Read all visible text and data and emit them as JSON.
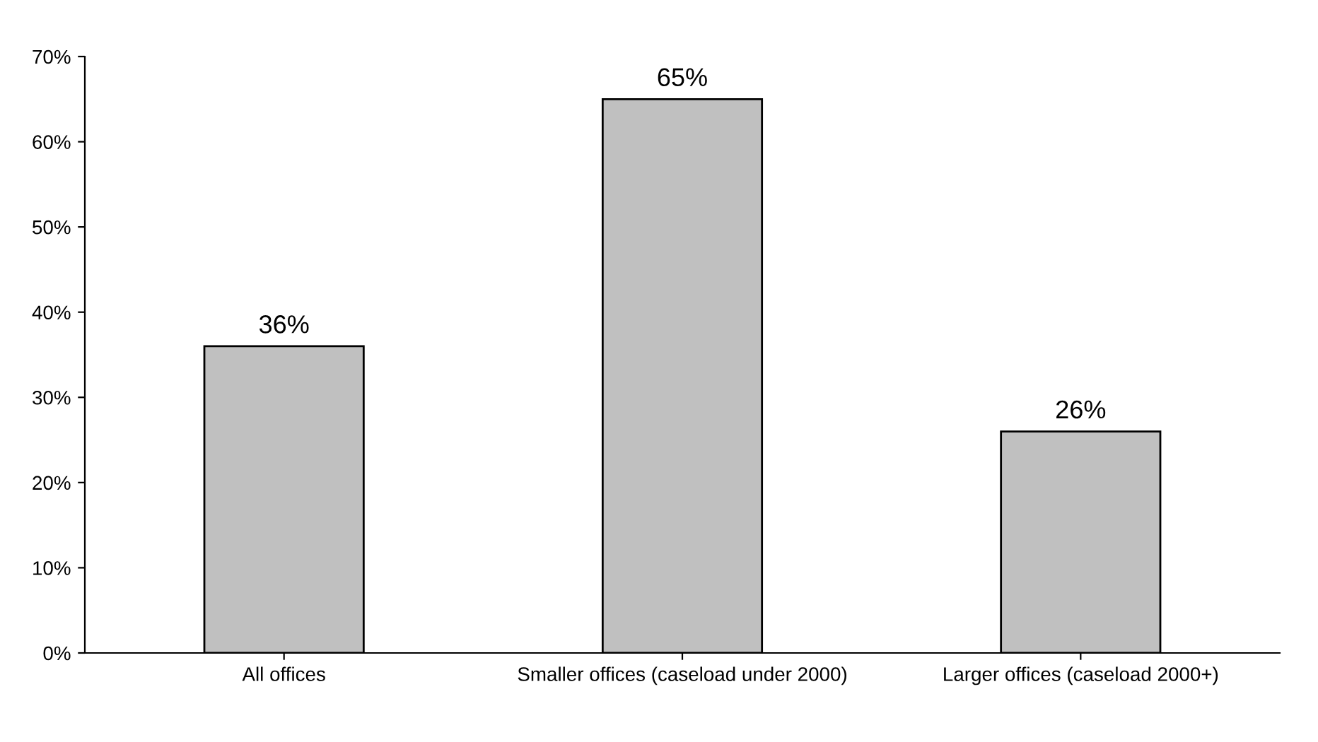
{
  "chart_data": {
    "type": "bar",
    "categories": [
      "All offices",
      "Smaller offices (caseload under 2000)",
      "Larger offices (caseload 2000+)"
    ],
    "values": [
      36,
      65,
      26
    ],
    "color": "#c0c0c0",
    "value_labels": [
      "36%",
      "65%",
      "26%"
    ],
    "ylim": [
      0,
      70
    ],
    "yticks": [
      {
        "value": 0,
        "label": "0%"
      },
      {
        "value": 10,
        "label": "10%"
      },
      {
        "value": 20,
        "label": "20%"
      },
      {
        "value": 30,
        "label": "30%"
      },
      {
        "value": 40,
        "label": "40%"
      },
      {
        "value": 50,
        "label": "50%"
      },
      {
        "value": 60,
        "label": "60%"
      },
      {
        "value": 70,
        "label": "70%"
      }
    ],
    "grid": false
  }
}
